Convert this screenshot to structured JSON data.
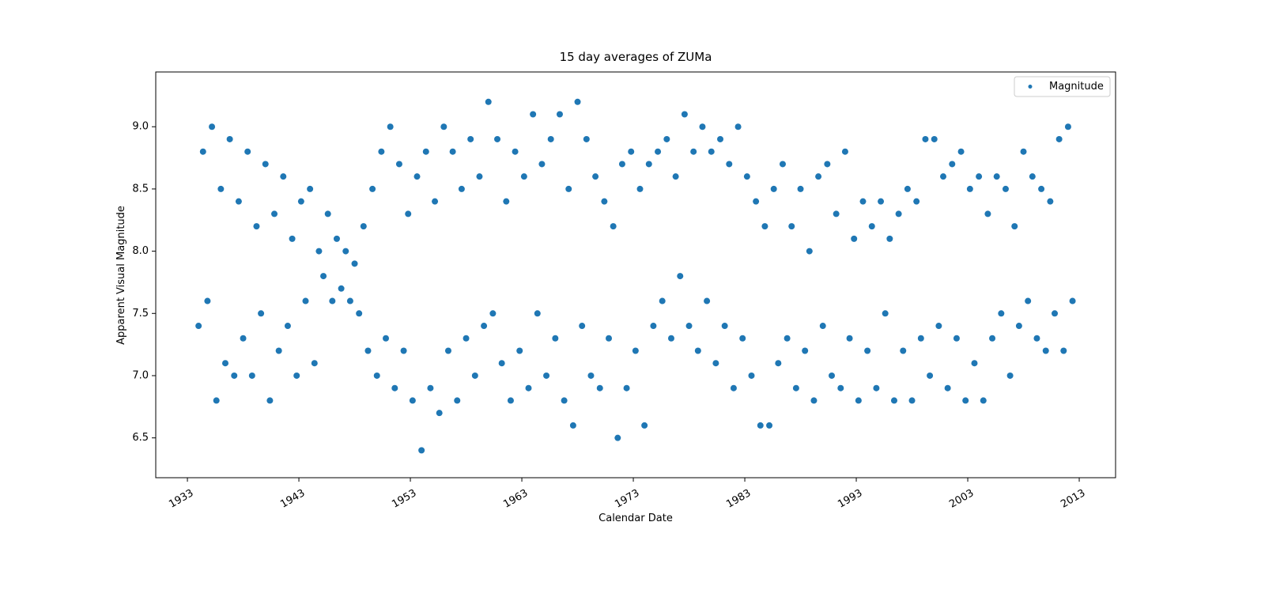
{
  "chart_data": {
    "type": "scatter",
    "title": "15 day averages of ZUMa",
    "x_label": "Calendar Date",
    "y_label": "Apparent Visual Magnitude",
    "legend": "upper right",
    "xlim": [
      1930.16,
      2016.26
    ],
    "ylim": [
      6.18,
      9.44
    ],
    "xticks": [
      1933,
      1943,
      1953,
      1963,
      1973,
      1983,
      1993,
      2003,
      2013
    ],
    "yticks": [
      {
        "value": 6.5,
        "label": "6.5"
      },
      {
        "value": 7,
        "label": "7.0"
      },
      {
        "value": 7.5,
        "label": "7.5"
      },
      {
        "value": 8,
        "label": "8.0"
      },
      {
        "value": 8.5,
        "label": "8.5"
      },
      {
        "value": 9,
        "label": "9.0"
      }
    ],
    "series": [
      {
        "name": "Magnitude",
        "color": "#1f77b4",
        "x": [
          1934.0,
          1934.4,
          1934.8,
          1935.2,
          1935.6,
          1936.0,
          1936.4,
          1936.8,
          1937.2,
          1937.6,
          1938.0,
          1938.4,
          1938.8,
          1939.2,
          1939.6,
          1940.0,
          1940.4,
          1940.8,
          1941.2,
          1941.6,
          1942.0,
          1942.4,
          1942.8,
          1943.2,
          1943.6,
          1944.0,
          1944.4,
          1944.8,
          1945.2,
          1945.6,
          1946.0,
          1946.4,
          1946.8,
          1947.2,
          1947.6,
          1948.0,
          1948.4,
          1948.8,
          1949.2,
          1949.6,
          1950.0,
          1950.4,
          1950.8,
          1951.2,
          1951.6,
          1952.0,
          1952.4,
          1952.8,
          1953.2,
          1953.6,
          1954.0,
          1954.4,
          1954.8,
          1955.2,
          1955.6,
          1956.0,
          1956.4,
          1956.8,
          1957.2,
          1957.6,
          1958.0,
          1958.4,
          1958.8,
          1959.2,
          1959.6,
          1960.0,
          1960.4,
          1960.8,
          1961.2,
          1961.6,
          1962.0,
          1962.4,
          1962.8,
          1963.2,
          1963.6,
          1964.0,
          1964.4,
          1964.8,
          1965.2,
          1965.6,
          1966.0,
          1966.4,
          1966.8,
          1967.2,
          1967.6,
          1968.0,
          1968.4,
          1968.8,
          1969.2,
          1969.6,
          1970.0,
          1970.4,
          1970.8,
          1971.2,
          1971.6,
          1972.0,
          1972.4,
          1972.8,
          1973.2,
          1973.6,
          1974.0,
          1974.4,
          1974.8,
          1975.2,
          1975.6,
          1976.0,
          1976.4,
          1976.8,
          1977.2,
          1977.6,
          1978.0,
          1978.4,
          1978.8,
          1979.2,
          1979.6,
          1980.0,
          1980.4,
          1980.8,
          1981.2,
          1981.6,
          1982.0,
          1982.4,
          1982.8,
          1983.2,
          1983.6,
          1984.0,
          1984.4,
          1984.8,
          1985.2,
          1985.6,
          1986.0,
          1986.4,
          1986.8,
          1987.2,
          1987.6,
          1988.0,
          1988.4,
          1988.8,
          1989.2,
          1989.6,
          1990.0,
          1990.4,
          1990.8,
          1991.2,
          1991.6,
          1992.0,
          1992.4,
          1992.8,
          1993.2,
          1993.6,
          1994.0,
          1994.4,
          1994.8,
          1995.2,
          1995.6,
          1996.0,
          1996.4,
          1996.8,
          1997.2,
          1997.6,
          1998.0,
          1998.4,
          1998.8,
          1999.2,
          1999.6,
          2000.0,
          2000.4,
          2000.8,
          2001.2,
          2001.6,
          2002.0,
          2002.4,
          2002.8,
          2003.2,
          2003.6,
          2004.0,
          2004.4,
          2004.8,
          2005.2,
          2005.6,
          2006.0,
          2006.4,
          2006.8,
          2007.2,
          2007.6,
          2008.0,
          2008.4,
          2008.8,
          2009.2,
          2009.6,
          2010.0,
          2010.4,
          2010.8,
          2011.2,
          2011.6,
          2012.0,
          2012.4
        ],
        "values": [
          7.4,
          8.8,
          7.6,
          9.0,
          6.8,
          8.5,
          7.1,
          8.9,
          7.0,
          8.4,
          7.3,
          8.8,
          7.0,
          8.2,
          7.5,
          8.7,
          6.8,
          8.3,
          7.2,
          8.6,
          7.4,
          8.1,
          7.0,
          8.4,
          7.6,
          8.5,
          7.1,
          8.0,
          7.8,
          8.3,
          7.6,
          8.1,
          7.7,
          8.0,
          7.6,
          7.9,
          7.5,
          8.2,
          7.2,
          8.5,
          7.0,
          8.8,
          7.3,
          9.0,
          6.9,
          8.7,
          7.2,
          8.3,
          6.8,
          8.6,
          6.4,
          8.8,
          6.9,
          8.4,
          6.7,
          9.0,
          7.2,
          8.8,
          6.8,
          8.5,
          7.3,
          8.9,
          7.0,
          8.6,
          7.4,
          9.2,
          7.5,
          8.9,
          7.1,
          8.4,
          6.8,
          8.8,
          7.2,
          8.6,
          6.9,
          9.1,
          7.5,
          8.7,
          7.0,
          8.9,
          7.3,
          9.1,
          6.8,
          8.5,
          6.6,
          9.2,
          7.4,
          8.9,
          7.0,
          8.6,
          6.9,
          8.4,
          7.3,
          8.2,
          6.5,
          8.7,
          6.9,
          8.8,
          7.2,
          8.5,
          6.6,
          8.7,
          7.4,
          8.8,
          7.6,
          8.9,
          7.3,
          8.6,
          7.8,
          9.1,
          7.4,
          8.8,
          7.2,
          9.0,
          7.6,
          8.8,
          7.1,
          8.9,
          7.4,
          8.7,
          6.9,
          9.0,
          7.3,
          8.6,
          7.0,
          8.4,
          6.6,
          8.2,
          6.6,
          8.5,
          7.1,
          8.7,
          7.3,
          8.2,
          6.9,
          8.5,
          7.2,
          8.0,
          6.8,
          8.6,
          7.4,
          8.7,
          7.0,
          8.3,
          6.9,
          8.8,
          7.3,
          8.1,
          6.8,
          8.4,
          7.2,
          8.2,
          6.9,
          8.4,
          7.5,
          8.1,
          6.8,
          8.3,
          7.2,
          8.5,
          6.8,
          8.4,
          7.3,
          8.9,
          7.0,
          8.9,
          7.4,
          8.6,
          6.9,
          8.7,
          7.3,
          8.8,
          6.8,
          8.5,
          7.1,
          8.6,
          6.8,
          8.3,
          7.3,
          8.6,
          7.5,
          8.5,
          7.0,
          8.2,
          7.4,
          8.8,
          7.6,
          8.6,
          7.3,
          8.5,
          7.2,
          8.4,
          7.5,
          8.9,
          7.2,
          9.0,
          7.6
        ]
      }
    ]
  }
}
